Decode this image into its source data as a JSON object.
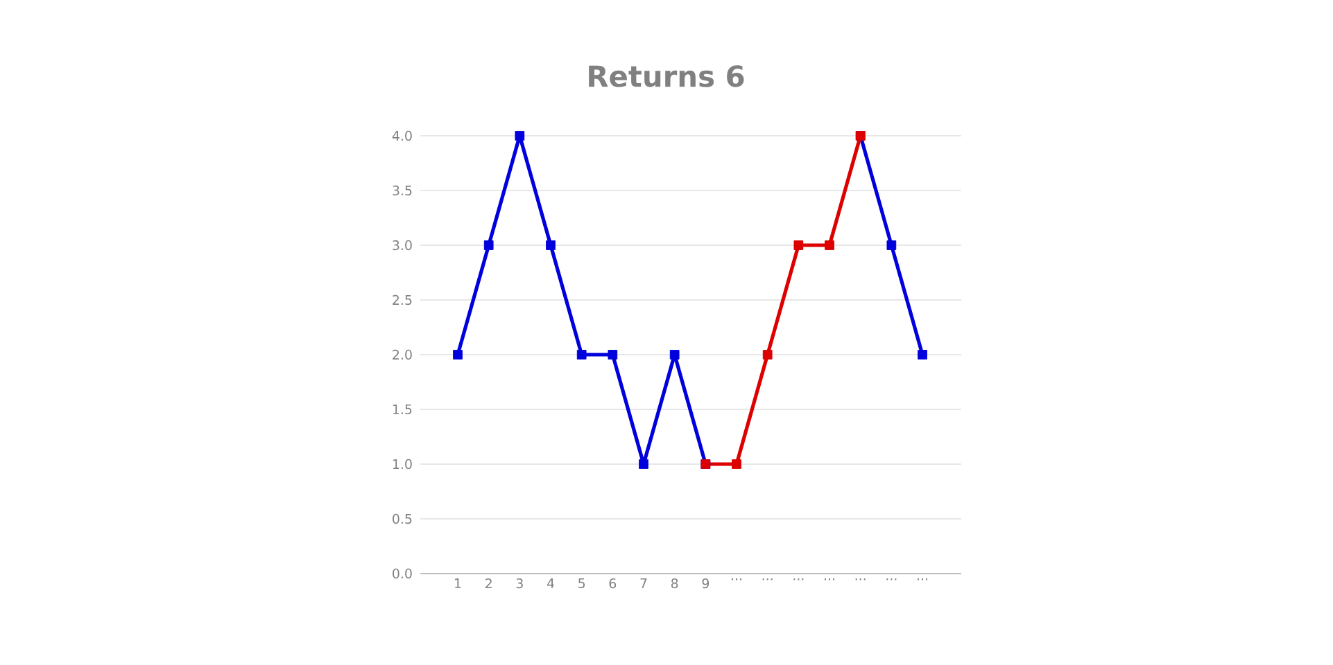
{
  "chart_data": {
    "type": "line",
    "title": "Returns 6",
    "categories": [
      "1",
      "2",
      "3",
      "4",
      "5",
      "6",
      "7",
      "8",
      "9",
      "...",
      "...",
      "...",
      "...",
      "...",
      "...",
      "..."
    ],
    "series": [
      {
        "color": "#0000dd",
        "values": [
          2,
          3,
          4,
          3,
          2,
          2,
          1,
          2,
          1,
          null,
          null,
          null,
          null,
          4,
          3,
          2
        ]
      },
      {
        "color": "#dd0000",
        "values": [
          null,
          null,
          null,
          null,
          null,
          null,
          null,
          null,
          1,
          1,
          2,
          3,
          3,
          4,
          null,
          null
        ]
      }
    ],
    "ylim": [
      0,
      4
    ],
    "yticks": [
      {
        "value": 0,
        "label": "0.0"
      },
      {
        "value": 0.5,
        "label": "0.5"
      },
      {
        "value": 1,
        "label": "1.0"
      },
      {
        "value": 1.5,
        "label": "1.5"
      },
      {
        "value": 2,
        "label": "2.0"
      },
      {
        "value": 2.5,
        "label": "2.5"
      },
      {
        "value": 3,
        "label": "3.0"
      },
      {
        "value": 3.5,
        "label": "3.5"
      },
      {
        "value": 4,
        "label": "4.0"
      }
    ],
    "grid": "y",
    "marker": "square",
    "line_style": "solid"
  }
}
